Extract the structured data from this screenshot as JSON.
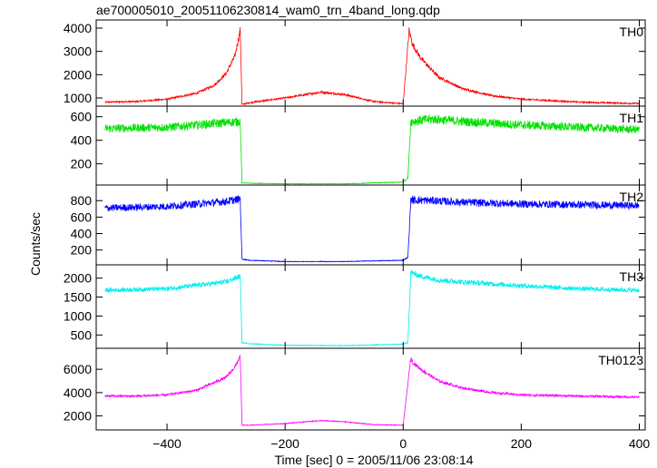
{
  "title": "ae700005010_20051106230814_wam0_trn_4band_long.qdp",
  "chart_data": {
    "type": "line",
    "xlabel": "Time [sec] 0 = 2005/11/06 23:08:14",
    "ylabel": "Counts/sec",
    "xlim": [
      -520,
      410
    ],
    "xticks": [
      -400,
      -200,
      0,
      200,
      400
    ],
    "shared_x": true,
    "grid": false,
    "panels": [
      {
        "name": "TH0",
        "color": "#ff0000",
        "ylim": [
          650,
          4350
        ],
        "yticks": [
          1000,
          2000,
          3000,
          4000
        ],
        "x": [
          -505,
          -450,
          -400,
          -350,
          -320,
          -300,
          -285,
          -276,
          -273,
          -260,
          -200,
          -140,
          -100,
          -50,
          0,
          10,
          13,
          16,
          30,
          60,
          100,
          150,
          200,
          300,
          400
        ],
        "y": [
          820,
          850,
          950,
          1200,
          1550,
          2050,
          2800,
          3900,
          720,
          800,
          1000,
          1250,
          1150,
          850,
          750,
          3900,
          3600,
          3300,
          2700,
          1900,
          1400,
          1100,
          950,
          820,
          760
        ],
        "noise": 0.04
      },
      {
        "name": "TH1",
        "color": "#00e000",
        "ylim": [
          20,
          690
        ],
        "yticks": [
          200,
          400,
          600
        ],
        "x": [
          -505,
          -400,
          -300,
          -276,
          -273,
          -260,
          -200,
          -100,
          0,
          8,
          13,
          50,
          100,
          200,
          300,
          400
        ],
        "y": [
          500,
          510,
          550,
          560,
          40,
          35,
          30,
          30,
          45,
          80,
          560,
          580,
          560,
          530,
          510,
          490
        ],
        "noise": 0.07
      },
      {
        "name": "TH2",
        "color": "#0000ff",
        "ylim": [
          20,
          990
        ],
        "yticks": [
          200,
          400,
          600,
          800
        ],
        "x": [
          -505,
          -400,
          -300,
          -276,
          -273,
          -260,
          -200,
          -100,
          0,
          8,
          13,
          50,
          100,
          200,
          300,
          400
        ],
        "y": [
          710,
          730,
          790,
          820,
          90,
          75,
          60,
          60,
          75,
          110,
          810,
          800,
          780,
          760,
          750,
          740
        ],
        "noise": 0.06
      },
      {
        "name": "TH3",
        "color": "#00eeee",
        "ylim": [
          150,
          2350
        ],
        "yticks": [
          500,
          1000,
          1500,
          2000
        ],
        "x": [
          -505,
          -400,
          -300,
          -276,
          -273,
          -260,
          -200,
          -100,
          0,
          8,
          13,
          30,
          60,
          100,
          200,
          300,
          400
        ],
        "y": [
          1680,
          1720,
          1900,
          2050,
          300,
          270,
          230,
          220,
          260,
          300,
          2150,
          2050,
          1950,
          1900,
          1800,
          1720,
          1680
        ],
        "noise": 0.035
      },
      {
        "name": "TH0123",
        "color": "#ff00ff",
        "ylim": [
          800,
          7800
        ],
        "yticks": [
          2000,
          4000,
          6000
        ],
        "x": [
          -505,
          -450,
          -400,
          -350,
          -300,
          -285,
          -276,
          -273,
          -260,
          -200,
          -140,
          -100,
          -50,
          0,
          13,
          16,
          30,
          60,
          100,
          150,
          200,
          300,
          400
        ],
        "y": [
          3700,
          3700,
          3800,
          4200,
          5300,
          6200,
          7100,
          1200,
          1200,
          1350,
          1600,
          1500,
          1250,
          1200,
          7000,
          6600,
          6000,
          5000,
          4400,
          4000,
          3800,
          3700,
          3600
        ],
        "noise": 0.025
      }
    ]
  }
}
